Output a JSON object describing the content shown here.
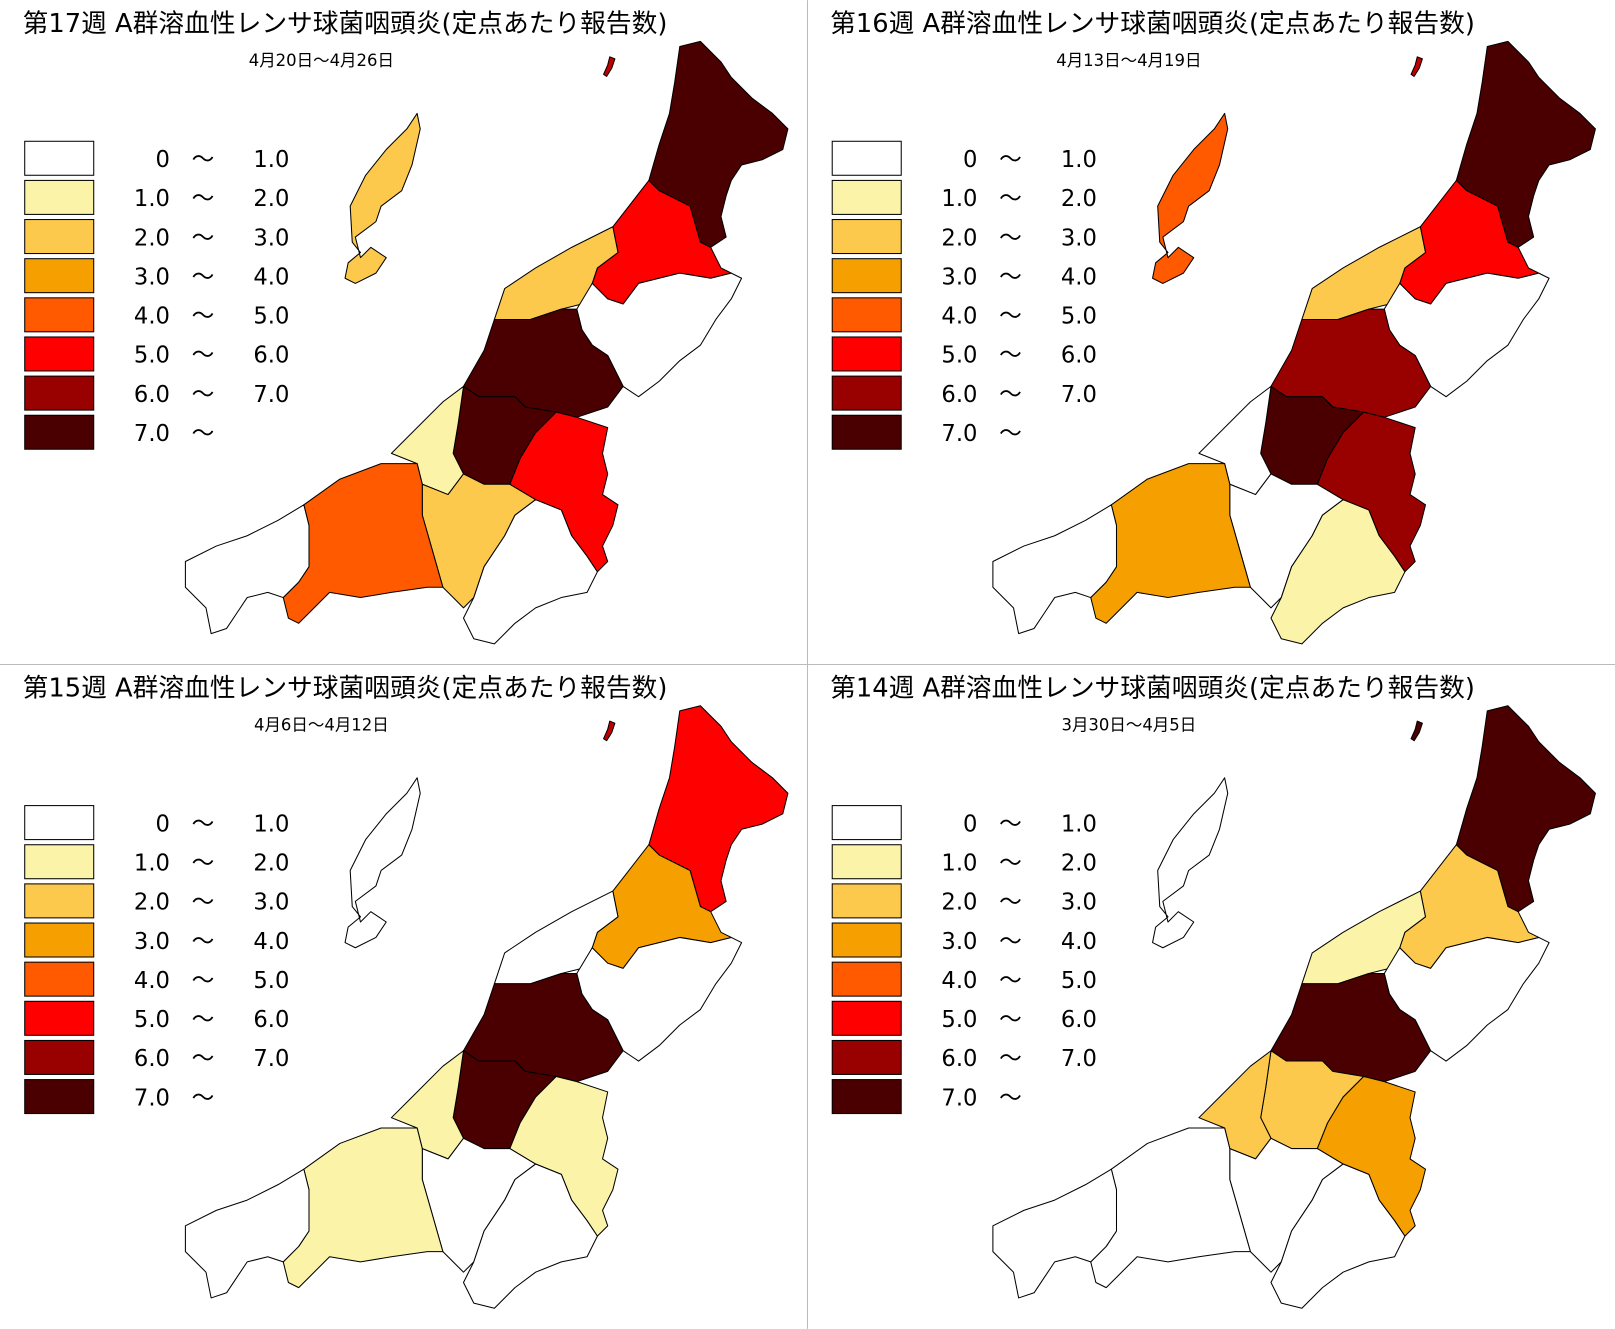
{
  "legend_separator": "～",
  "legend": [
    {
      "from": "0",
      "to": "1.0",
      "color": "#ffffff"
    },
    {
      "from": "1.0",
      "to": "2.0",
      "color": "#faf3a8"
    },
    {
      "from": "2.0",
      "to": "3.0",
      "color": "#fcc94d"
    },
    {
      "from": "3.0",
      "to": "4.0",
      "color": "#f5a000"
    },
    {
      "from": "4.0",
      "to": "5.0",
      "color": "#ff5a00"
    },
    {
      "from": "5.0",
      "to": "6.0",
      "color": "#ff0000"
    },
    {
      "from": "6.0",
      "to": "7.0",
      "color": "#990000"
    },
    {
      "from": "7.0",
      "color": "#4a0000"
    }
  ],
  "maps": [
    {
      "title": "第17週 A群溶血性レンサ球菌咽頭炎(定点あたり報告数)",
      "subtitle": "4月20日～4月26日",
      "region_colors": [
        "#fcc94d",
        "#c00000",
        "#4a0000",
        "#ff0000",
        "#fcc94d",
        "#ffffff",
        "#4a0000",
        "#4a0000",
        "#faf3a8",
        "#ff0000",
        "#fcc94d",
        "#ff5a00",
        "#ffffff",
        "#ffffff"
      ]
    },
    {
      "title": "第16週 A群溶血性レンサ球菌咽頭炎(定点あたり報告数)",
      "subtitle": "4月13日～4月19日",
      "region_colors": [
        "#ff5a00",
        "#c00000",
        "#4a0000",
        "#ff0000",
        "#fcc94d",
        "#ffffff",
        "#990000",
        "#4a0000",
        "#ffffff",
        "#990000",
        "#ffffff",
        "#f5a000",
        "#ffffff",
        "#faf3a8"
      ]
    },
    {
      "title": "第15週 A群溶血性レンサ球菌咽頭炎(定点あたり報告数)",
      "subtitle": "4月6日～4月12日",
      "region_colors": [
        "#ffffff",
        "#c00000",
        "#ff0000",
        "#f5a000",
        "#ffffff",
        "#ffffff",
        "#4a0000",
        "#4a0000",
        "#faf3a8",
        "#faf3a8",
        "#ffffff",
        "#faf3a8",
        "#ffffff",
        "#ffffff"
      ]
    },
    {
      "title": "第14週 A群溶血性レンサ球菌咽頭炎(定点あたり報告数)",
      "subtitle": "3月30日～4月5日",
      "region_colors": [
        "#ffffff",
        "#4a0000",
        "#4a0000",
        "#fcc94d",
        "#faf3a8",
        "#ffffff",
        "#4a0000",
        "#fcc94d",
        "#fcc94d",
        "#f5a000",
        "#ffffff",
        "#ffffff",
        "#ffffff",
        "#ffffff"
      ]
    }
  ]
}
